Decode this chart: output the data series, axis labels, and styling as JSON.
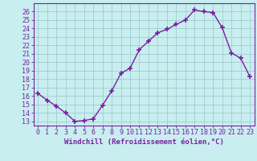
{
  "x": [
    0,
    1,
    2,
    3,
    4,
    5,
    6,
    7,
    8,
    9,
    10,
    11,
    12,
    13,
    14,
    15,
    16,
    17,
    18,
    19,
    20,
    21,
    22,
    23
  ],
  "y": [
    16.3,
    15.5,
    14.8,
    14.0,
    13.0,
    13.1,
    13.3,
    14.9,
    16.6,
    18.7,
    19.3,
    21.5,
    22.5,
    23.5,
    23.9,
    24.5,
    25.0,
    26.2,
    26.0,
    25.9,
    24.1,
    21.1,
    20.5,
    18.3
  ],
  "line_color": "#7b1fa2",
  "marker": "+",
  "marker_size": 4,
  "marker_lw": 1.2,
  "line_width": 1.0,
  "bg_color": "#c8eef0",
  "grid_color": "#a0ccd0",
  "ylabel_ticks": [
    13,
    14,
    15,
    16,
    17,
    18,
    19,
    20,
    21,
    22,
    23,
    24,
    25,
    26
  ],
  "xlabel": "Windchill (Refroidissement éolien,°C)",
  "ylim": [
    12.5,
    27.0
  ],
  "xlim": [
    -0.5,
    23.5
  ],
  "tick_color": "#7b1fa2",
  "label_color": "#7b1fa2",
  "tick_fontsize": 6,
  "xlabel_fontsize": 6.5
}
